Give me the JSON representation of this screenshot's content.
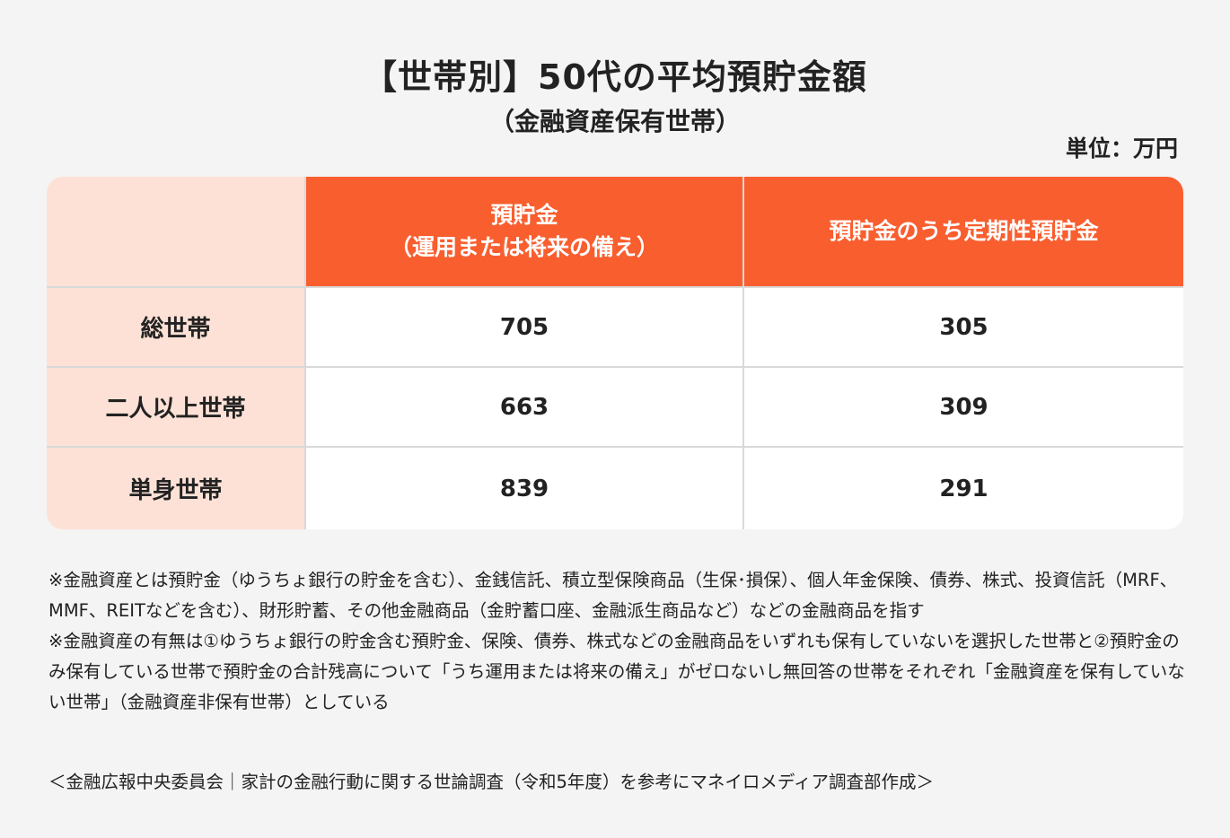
{
  "title": "【世帯別】50代の平均預貯金額",
  "subtitle": "（金融資産保有世帯）",
  "unit_label": "単位：万円",
  "chart_data": {
    "type": "table",
    "columns": [
      {
        "line1": "預貯金",
        "line2": "（運用または将来の備え）"
      },
      {
        "line1": "預貯金のうち定期性預貯金",
        "line2": ""
      }
    ],
    "rows": [
      {
        "label": "総世帯",
        "values": [
          "705",
          "305"
        ]
      },
      {
        "label": "二人以上世帯",
        "values": [
          "663",
          "309"
        ]
      },
      {
        "label": "単身世帯",
        "values": [
          "839",
          "291"
        ]
      }
    ]
  },
  "notes": [
    "※金融資産とは預貯金（ゆうちょ銀行の貯金を含む）、金銭信託、積立型保険商品（生保･損保）、個人年金保険、債券、株式、投資信託（MRF、MMF、REITなどを含む）、財形貯蓄、その他金融商品（金貯蓄口座、金融派生商品など）などの金融商品を指す",
    "※金融資産の有無は①ゆうちょ銀行の貯金含む預貯金、保険、債券、株式などの金融商品をいずれも保有していないを選択した世帯と②預貯金のみ保有している世帯で預貯金の合計残高について「うち運用または将来の備え」がゼロないし無回答の世帯をそれぞれ「金融資産を保有していない世帯」（金融資産非保有世帯）としている"
  ],
  "source": "＜金融広報中央委員会｜家計の金融行動に関する世論調査（令和5年度）を参考にマネイロメディア調査部作成＞",
  "colors": {
    "header_bg": "#f95e2f",
    "label_bg": "#fde1d6",
    "page_bg": "#f4f4f4"
  }
}
